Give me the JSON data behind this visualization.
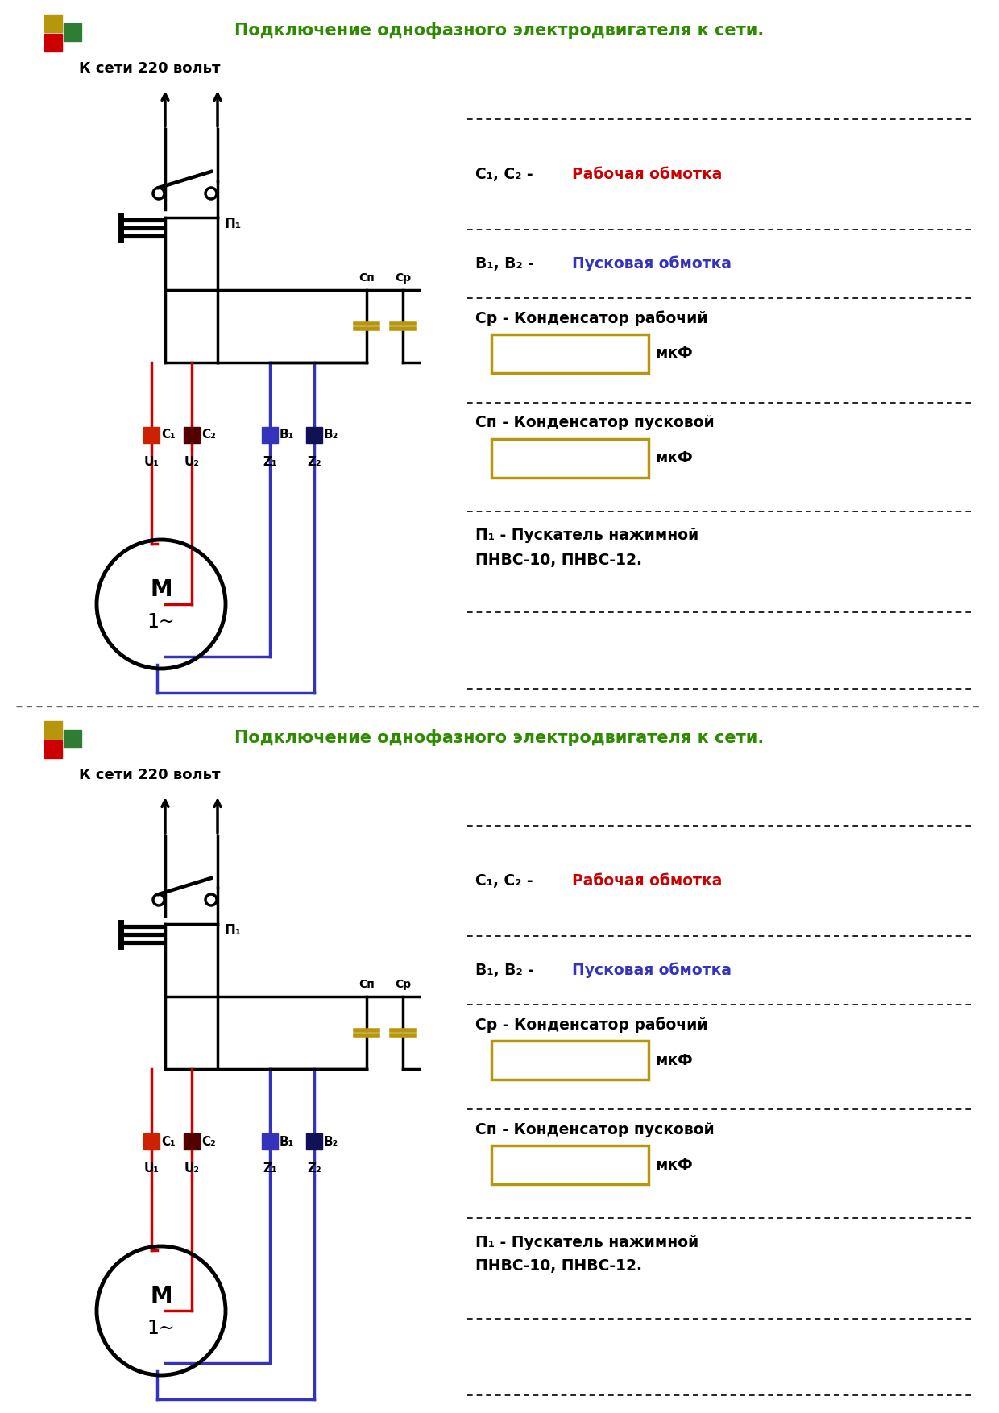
{
  "title": "Подключение однофазного электродвигателя к сети.",
  "title_color": "#2e8b00",
  "bg_color": "#ffffff",
  "label_220": "К сети 220 вольт",
  "label_P1": "П₁",
  "label_C1": "С₁",
  "label_C2": "С₂",
  "label_B1": "В₁",
  "label_B2": "В₂",
  "label_U1": "U₁",
  "label_U2": "U₂",
  "label_Z1": "Z₁",
  "label_Z2": "Z₂",
  "label_Cn": "Сп",
  "label_Cr": "Ср",
  "label_M": "M",
  "label_1phase": "1~",
  "red_color": "#cc0000",
  "blue_color": "#3333bb",
  "black_color": "#000000",
  "gold_color": "#b8960c",
  "rect_color": "#b8960c",
  "text_c1c2": "С₁, С₂ - ",
  "text_c1c2_colored": "Рабочая обмотка",
  "text_b1b2": "В₁, В₂ - ",
  "text_b1b2_colored": "Пусковая обмотка",
  "text_cr": "Ср - Конденсатор рабочий",
  "text_cn": "Сп - Конденсатор пусковой",
  "text_p1a": "П₁ - Пускатель нажимной",
  "text_p1b": "ПНВС-10, ПНВС-12.",
  "label_mkf": "мкФ",
  "sq_gold": "#b8960c",
  "sq_red": "#cc0000",
  "sq_green": "#2e7d32",
  "c1_color": "#cc2200",
  "c2_color": "#550000",
  "b1_color": "#3333bb",
  "b2_color": "#111155"
}
